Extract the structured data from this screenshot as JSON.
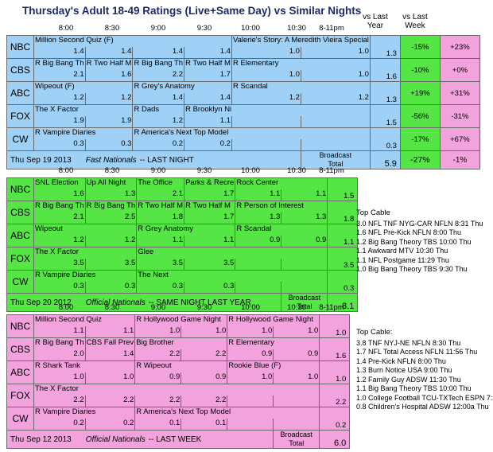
{
  "title": "Thursday's Adult 18-49 Ratings (Live+Same Day) vs Similar Nights",
  "col_headers": {
    "last_year": "vs Last\nYear",
    "last_week": "vs Last\nWeek",
    "times": [
      "8:00",
      "8:30",
      "9:00",
      "9:30",
      "10:00",
      "10:30",
      "8-11pm"
    ]
  },
  "colors": {
    "blue": "#9fd0f6",
    "green": "#55e545",
    "pink": "#f2a2dd",
    "green_cell": "#55e545",
    "pink_cell": "#f2a2dd"
  },
  "pane1": {
    "rows": [
      {
        "net": "NBC",
        "shows": [
          "Million Second Quiz (F)",
          "",
          "",
          "",
          "Valerie's Story: A Meredith Vieira Special",
          ""
        ],
        "vals": [
          "1.4",
          "1.4",
          "1.4",
          "1.4",
          "1.0",
          "1.0"
        ],
        "total": "1.3",
        "ly": "-15%",
        "lw": "+23%"
      },
      {
        "net": "CBS",
        "shows": [
          "R Big Bang Th",
          "R Two Half M",
          "R Big Bang Th",
          "R Two Half M",
          "R Elementary",
          ""
        ],
        "vals": [
          "2.1",
          "1.6",
          "2.2",
          "1.7",
          "1.0",
          "1.0"
        ],
        "total": "1.6",
        "ly": "-10%",
        "lw": "+0%"
      },
      {
        "net": "ABC",
        "shows": [
          "Wipeout (F)",
          "",
          "R Grey's Anatomy",
          "",
          "R Scandal",
          ""
        ],
        "vals": [
          "1.2",
          "1.2",
          "1.4",
          "1.4",
          "1.2",
          "1.2"
        ],
        "total": "1.3",
        "ly": "+19%",
        "lw": "+31%"
      },
      {
        "net": "FOX",
        "shows": [
          "The X Factor",
          "",
          "R Dads",
          "R Brooklyn Ni",
          "",
          ""
        ],
        "vals": [
          "1.9",
          "1.9",
          "1.2",
          "1.1",
          "",
          ""
        ],
        "total": "1.5",
        "ly": "-56%",
        "lw": "-31%"
      },
      {
        "net": "CW",
        "shows": [
          "R Vampire Diaries",
          "",
          "R America's Next Top Model",
          "",
          "",
          ""
        ],
        "vals": [
          "0.3",
          "0.3",
          "0.2",
          "0.2",
          "",
          ""
        ],
        "total": "0.3",
        "ly": "-17%",
        "lw": "+67%"
      }
    ],
    "footer_date": "Thu Sep 19 2013",
    "footer_type": "Fast Nationals",
    "footer_rest": "-- LAST NIGHT",
    "broadcast_total_label": "Broadcast\nTotal",
    "broadcast_total": "5.9",
    "total_ly": "-27%",
    "total_lw": "-1%"
  },
  "pane2": {
    "rows": [
      {
        "net": "NBC",
        "shows": [
          "SNL Election",
          "Up All Night",
          "The Office",
          "Parks & Recre",
          "Rock Center",
          ""
        ],
        "vals": [
          "1.6",
          "1.3",
          "2.1",
          "1.7",
          "1.1",
          "1.1"
        ],
        "total": "1.5"
      },
      {
        "net": "CBS",
        "shows": [
          "R Big Bang Th",
          "R Big Bang Th",
          "R Two Half M",
          "R Two Half M",
          "R Person of Interest",
          ""
        ],
        "vals": [
          "2.1",
          "2.5",
          "1.8",
          "1.7",
          "1.3",
          "1.3"
        ],
        "total": "1.8"
      },
      {
        "net": "ABC",
        "shows": [
          "Wipeout",
          "",
          "R Grey Anatomy",
          "",
          "R Scandal",
          ""
        ],
        "vals": [
          "1.2",
          "1.2",
          "1.1",
          "1.1",
          "0.9",
          "0.9"
        ],
        "total": "1.1"
      },
      {
        "net": "FOX",
        "shows": [
          "The X Factor",
          "",
          "Glee",
          "",
          "",
          ""
        ],
        "vals": [
          "3.5",
          "3.5",
          "3.5",
          "3.5",
          "",
          ""
        ],
        "total": "3.5"
      },
      {
        "net": "CW",
        "shows": [
          "R Vampire Diaries",
          "",
          "The Next",
          "",
          "",
          ""
        ],
        "vals": [
          "0.3",
          "0.3",
          "0.3",
          "0.3",
          "",
          ""
        ],
        "total": "0.3"
      }
    ],
    "footer_date": "Thu Sep 20 2012",
    "footer_type": "Official Nationals",
    "footer_rest": "-- SAME NIGHT LAST YEAR",
    "broadcast_total_label": "Broadcast\nTotal",
    "broadcast_total": "8.1",
    "side_title": "Top Cable",
    "side_items": [
      "3.0 NFL TNF NYG-CAR NFLN 8:31 Thu",
      "1.6 NFL Pre-Kick NFLN 8:00 Thu",
      "1.2 Big Bang Theory TBS 10:00 Thu",
      "1.1 Awkward MTV 10:30 Thu",
      "1.1 NFL Postgame 11:29 Thu",
      "1.0 Big Bang Theory TBS 9:30 Thu"
    ]
  },
  "pane3": {
    "rows": [
      {
        "net": "NBC",
        "shows": [
          "Million Second Quiz",
          "",
          "R Hollywood Game Night",
          "",
          "R Hollywood Game Night",
          ""
        ],
        "vals": [
          "1.1",
          "1.1",
          "1.0",
          "1.0",
          "1.0",
          "1.0"
        ],
        "total": "1.0"
      },
      {
        "net": "CBS",
        "shows": [
          "R Big Bang Th",
          "CBS Fall Prev",
          "Big Brother",
          "",
          "R Elementary",
          ""
        ],
        "vals": [
          "2.0",
          "1.4",
          "2.2",
          "2.2",
          "0.9",
          "0.9"
        ],
        "total": "1.6"
      },
      {
        "net": "ABC",
        "shows": [
          "R Shark Tank",
          "",
          "R Wipeout",
          "",
          "Rookie Blue (F)",
          ""
        ],
        "vals": [
          "1.0",
          "1.0",
          "0.9",
          "0.9",
          "1.0",
          "1.0"
        ],
        "total": "1.0"
      },
      {
        "net": "FOX",
        "shows": [
          "The X Factor",
          "",
          "",
          "",
          "",
          ""
        ],
        "vals": [
          "2.2",
          "2.2",
          "2.2",
          "2.2",
          "",
          ""
        ],
        "total": "2.2"
      },
      {
        "net": "CW",
        "shows": [
          "R Vampire Diaries",
          "",
          "R America's Next Top Model",
          "",
          "",
          ""
        ],
        "vals": [
          "0.2",
          "0.2",
          "0.1",
          "0.1",
          "",
          ""
        ],
        "total": "0.2"
      }
    ],
    "footer_date": "Thu Sep 12 2013",
    "footer_type": "Official Nationals",
    "footer_rest": "-- LAST WEEK",
    "broadcast_total_label": "Broadcast\nTotal",
    "broadcast_total": "6.0",
    "side_title": "Top Cable:",
    "side_items": [
      "3.8 TNF NYJ-NE NFLN 8:30 Thu",
      "1.7 NFL Total Access NFLN 11:56 Thu",
      "1.4 Pre-Kick NFLN 8:00 Thu",
      "1.3 Burn Notice USA 9:00 Thu",
      "1.2 Family Guy ADSW 11:30 Thu",
      "1.1 Big Bang Theory TBS 10:00 Thu",
      "1.0 College Football TCU-TXTech ESPN 7:25",
      "0.8 Children's Hospital ADSW 12:00a Thu"
    ]
  }
}
